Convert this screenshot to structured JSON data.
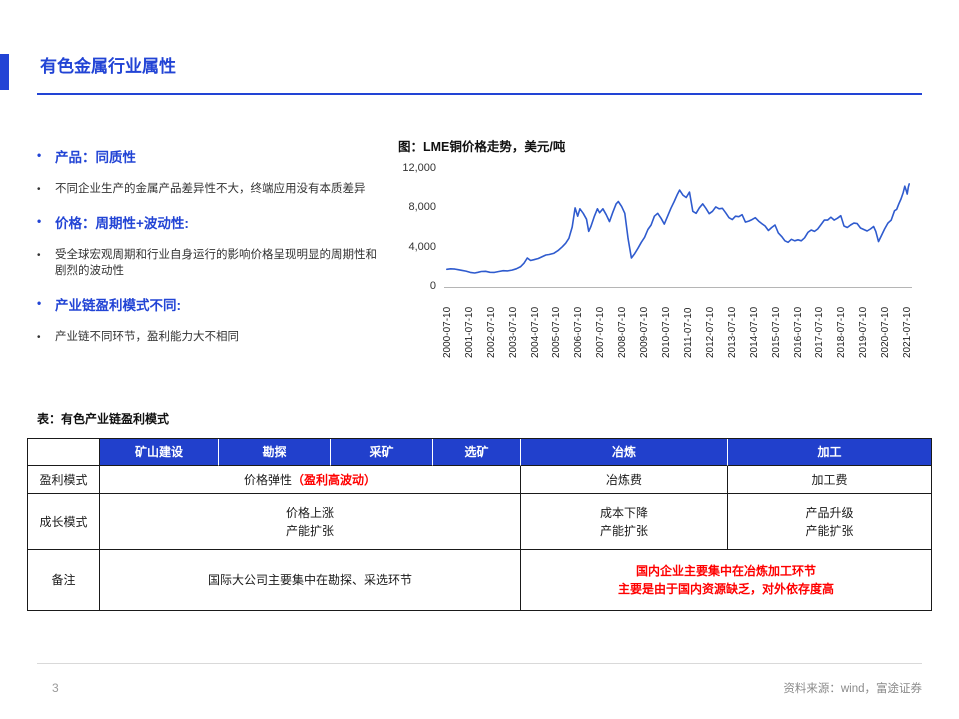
{
  "slide": {
    "title": "有色金属行业属性",
    "page_number": "3",
    "source": "资料来源：wind，富途证券"
  },
  "colors": {
    "accent_blue": "#2244d5",
    "table_header_blue": "#2140cc",
    "line_blue": "#2f5bce",
    "alert_red": "#ff0000"
  },
  "bullets": [
    {
      "type": "heading",
      "text": "产品：同质性"
    },
    {
      "type": "body",
      "text": "不同企业生产的金属产品差异性不大，终端应用没有本质差异"
    },
    {
      "type": "heading",
      "text": "价格：周期性+波动性:"
    },
    {
      "type": "body",
      "text": "受全球宏观周期和行业自身运行的影响价格呈现明显的周期性和剧烈的波动性"
    },
    {
      "type": "heading",
      "text": "产业链盈利模式不同:"
    },
    {
      "type": "body",
      "text": "产业链不同环节，盈利能力大不相同"
    }
  ],
  "chart_data": {
    "type": "line",
    "title": "图：LME铜价格走势，美元/吨",
    "ylabel": "美元/吨",
    "ylim": [
      0,
      12000
    ],
    "yticks": [
      0,
      4000,
      8000,
      12000
    ],
    "ytick_labels": [
      "0",
      "4,000",
      "8,000",
      "12,000"
    ],
    "xtick_labels": [
      "2000-07-10",
      "2001-07-10",
      "2002-07-10",
      "2003-07-10",
      "2004-07-10",
      "2005-07-10",
      "2006-07-10",
      "2007-07-10",
      "2008-07-10",
      "2009-07-10",
      "2010-07-10",
      "2011-07-10",
      "2012-07-10",
      "2013-07-10",
      "2014-07-10",
      "2015-07-10",
      "2016-07-10",
      "2017-07-10",
      "2018-07-10",
      "2019-07-10",
      "2020-07-10",
      "2021-07-10"
    ],
    "x_range": [
      2000.4,
      2021.75
    ],
    "grid": false,
    "legend": "none",
    "series": [
      {
        "name": "LME铜价格",
        "color": "#2f5bce",
        "points": [
          [
            2000.53,
            1800
          ],
          [
            2000.7,
            1850
          ],
          [
            2000.9,
            1820
          ],
          [
            2001.05,
            1760
          ],
          [
            2001.2,
            1700
          ],
          [
            2001.4,
            1620
          ],
          [
            2001.6,
            1480
          ],
          [
            2001.8,
            1420
          ],
          [
            2001.95,
            1500
          ],
          [
            2002.1,
            1580
          ],
          [
            2002.3,
            1600
          ],
          [
            2002.5,
            1500
          ],
          [
            2002.7,
            1480
          ],
          [
            2002.9,
            1580
          ],
          [
            2003.1,
            1660
          ],
          [
            2003.3,
            1640
          ],
          [
            2003.5,
            1720
          ],
          [
            2003.7,
            1850
          ],
          [
            2003.9,
            2070
          ],
          [
            2004.05,
            2420
          ],
          [
            2004.2,
            2950
          ],
          [
            2004.35,
            2700
          ],
          [
            2004.5,
            2780
          ],
          [
            2004.7,
            2900
          ],
          [
            2004.9,
            3100
          ],
          [
            2005.05,
            3250
          ],
          [
            2005.2,
            3300
          ],
          [
            2005.4,
            3420
          ],
          [
            2005.6,
            3700
          ],
          [
            2005.8,
            4100
          ],
          [
            2005.95,
            4450
          ],
          [
            2006.1,
            4950
          ],
          [
            2006.25,
            6100
          ],
          [
            2006.38,
            8040
          ],
          [
            2006.5,
            7200
          ],
          [
            2006.6,
            7950
          ],
          [
            2006.75,
            7500
          ],
          [
            2006.9,
            6900
          ],
          [
            2007.0,
            5650
          ],
          [
            2007.1,
            6150
          ],
          [
            2007.25,
            7150
          ],
          [
            2007.4,
            7950
          ],
          [
            2007.5,
            7550
          ],
          [
            2007.65,
            7950
          ],
          [
            2007.8,
            7350
          ],
          [
            2007.95,
            6650
          ],
          [
            2008.1,
            7600
          ],
          [
            2008.25,
            8450
          ],
          [
            2008.35,
            8700
          ],
          [
            2008.5,
            8200
          ],
          [
            2008.65,
            7500
          ],
          [
            2008.8,
            4900
          ],
          [
            2008.95,
            2950
          ],
          [
            2009.1,
            3400
          ],
          [
            2009.25,
            3950
          ],
          [
            2009.4,
            4550
          ],
          [
            2009.55,
            5050
          ],
          [
            2009.7,
            5850
          ],
          [
            2009.85,
            6300
          ],
          [
            2010.0,
            7200
          ],
          [
            2010.15,
            7500
          ],
          [
            2010.3,
            7000
          ],
          [
            2010.45,
            6400
          ],
          [
            2010.6,
            7200
          ],
          [
            2010.75,
            8000
          ],
          [
            2010.9,
            8700
          ],
          [
            2011.05,
            9450
          ],
          [
            2011.15,
            9850
          ],
          [
            2011.3,
            9350
          ],
          [
            2011.45,
            9100
          ],
          [
            2011.6,
            9650
          ],
          [
            2011.75,
            7700
          ],
          [
            2011.9,
            7500
          ],
          [
            2012.05,
            8050
          ],
          [
            2012.2,
            8450
          ],
          [
            2012.35,
            8000
          ],
          [
            2012.5,
            7450
          ],
          [
            2012.65,
            7700
          ],
          [
            2012.8,
            8150
          ],
          [
            2012.95,
            7950
          ],
          [
            2013.1,
            8000
          ],
          [
            2013.25,
            7550
          ],
          [
            2013.4,
            7050
          ],
          [
            2013.55,
            6850
          ],
          [
            2013.7,
            7200
          ],
          [
            2013.85,
            7150
          ],
          [
            2014.0,
            7350
          ],
          [
            2014.15,
            6600
          ],
          [
            2014.3,
            6700
          ],
          [
            2014.45,
            6850
          ],
          [
            2014.6,
            7050
          ],
          [
            2014.75,
            6700
          ],
          [
            2014.9,
            6450
          ],
          [
            2015.05,
            6200
          ],
          [
            2015.2,
            5750
          ],
          [
            2015.35,
            6050
          ],
          [
            2015.5,
            6300
          ],
          [
            2015.65,
            5500
          ],
          [
            2015.8,
            5150
          ],
          [
            2015.95,
            4700
          ],
          [
            2016.1,
            4550
          ],
          [
            2016.25,
            4850
          ],
          [
            2016.4,
            4700
          ],
          [
            2016.55,
            4800
          ],
          [
            2016.7,
            4700
          ],
          [
            2016.85,
            5000
          ],
          [
            2017.0,
            5550
          ],
          [
            2017.15,
            5800
          ],
          [
            2017.3,
            5650
          ],
          [
            2017.45,
            5900
          ],
          [
            2017.6,
            6350
          ],
          [
            2017.75,
            6800
          ],
          [
            2017.9,
            6800
          ],
          [
            2018.05,
            7100
          ],
          [
            2018.2,
            6800
          ],
          [
            2018.35,
            7000
          ],
          [
            2018.5,
            7250
          ],
          [
            2018.65,
            6200
          ],
          [
            2018.8,
            6050
          ],
          [
            2018.95,
            6300
          ],
          [
            2019.1,
            6500
          ],
          [
            2019.25,
            6450
          ],
          [
            2019.4,
            6000
          ],
          [
            2019.55,
            5850
          ],
          [
            2019.7,
            5700
          ],
          [
            2019.85,
            5900
          ],
          [
            2020.0,
            6150
          ],
          [
            2020.1,
            5650
          ],
          [
            2020.22,
            4620
          ],
          [
            2020.35,
            5200
          ],
          [
            2020.5,
            5900
          ],
          [
            2020.65,
            6500
          ],
          [
            2020.8,
            6800
          ],
          [
            2020.95,
            7750
          ],
          [
            2021.05,
            7900
          ],
          [
            2021.15,
            8450
          ],
          [
            2021.25,
            8950
          ],
          [
            2021.35,
            9600
          ],
          [
            2021.42,
            10250
          ],
          [
            2021.48,
            9850
          ],
          [
            2021.53,
            9450
          ],
          [
            2021.58,
            10150
          ],
          [
            2021.62,
            10480
          ]
        ]
      }
    ]
  },
  "table": {
    "caption": "表：有色产业链盈利模式",
    "headers": [
      "矿山建设",
      "勘探",
      "采矿",
      "选矿",
      "冶炼",
      "加工"
    ],
    "row_profit": {
      "label": "盈利模式",
      "upstream_black": "价格弹性",
      "upstream_red": "（盈利高波动）",
      "smelt": "冶炼费",
      "process": "加工费"
    },
    "row_growth": {
      "label": "成长模式",
      "upstream_l1": "价格上涨",
      "upstream_l2": "产能扩张",
      "smelt_l1": "成本下降",
      "smelt_l2": "产能扩张",
      "process_l1": "产品升级",
      "process_l2": "产能扩张"
    },
    "row_note": {
      "label": "备注",
      "upstream": "国际大公司主要集中在勘探、采选环节",
      "downstream_l1": "国内企业主要集中在冶炼加工环节",
      "downstream_l2": "主要是由于国内资源缺乏，对外依存度高"
    }
  }
}
